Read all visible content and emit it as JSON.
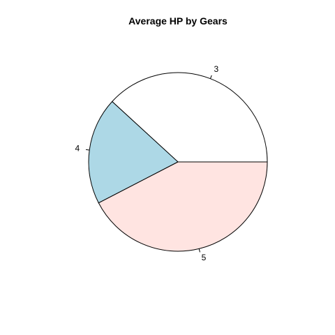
{
  "chart_data": {
    "type": "pie",
    "title": "Average HP by Gears",
    "categories": [
      "3",
      "4",
      "5"
    ],
    "values": [
      176.13,
      89.5,
      195.6
    ],
    "colors": [
      "#ffffff",
      "#add8e6",
      "#ffe4e1"
    ],
    "direction": "counterclockwise",
    "start": "3 o'clock",
    "legend": "none",
    "grid": false
  }
}
